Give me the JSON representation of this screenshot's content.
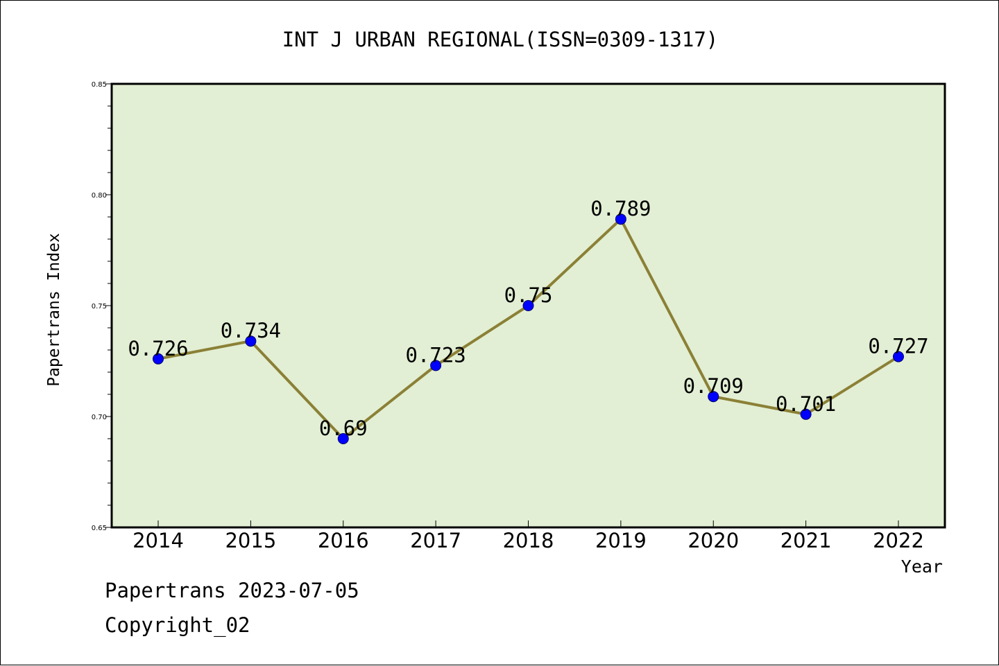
{
  "chart_data": {
    "type": "line",
    "title": "INT J URBAN REGIONAL(ISSN=0309-1317)",
    "xlabel": "Year",
    "ylabel": "Papertrans Index",
    "x": [
      "2014",
      "2015",
      "2016",
      "2017",
      "2018",
      "2019",
      "2020",
      "2021",
      "2022"
    ],
    "series": [
      {
        "values": [
          0.726,
          0.734,
          0.69,
          0.723,
          0.75,
          0.789,
          0.709,
          0.701,
          0.727
        ],
        "labels": [
          "0.726",
          "0.734",
          "0.69",
          "0.723",
          "0.75",
          "0.789",
          "0.709",
          "0.701",
          "0.727"
        ],
        "line_color": "#8b8036",
        "marker_color": "#0000ff"
      }
    ],
    "ylim": [
      0.65,
      0.85
    ],
    "yticks": [
      "0.65",
      "0.70",
      "0.75",
      "0.80",
      "0.85"
    ],
    "plot_background": "#e2efd4",
    "grid": false,
    "legend": "none"
  },
  "footer": {
    "line1": "Papertrans 2023-07-05",
    "line2": "Copyright_02"
  }
}
